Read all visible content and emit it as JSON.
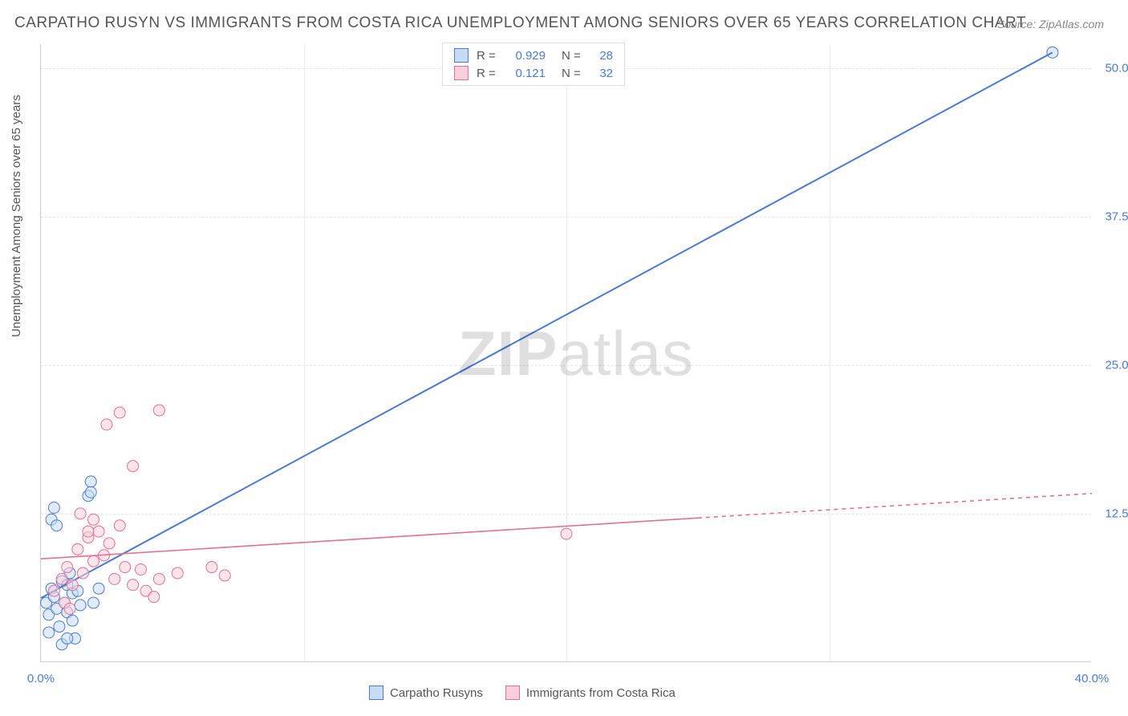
{
  "title": "CARPATHO RUSYN VS IMMIGRANTS FROM COSTA RICA UNEMPLOYMENT AMONG SENIORS OVER 65 YEARS CORRELATION CHART",
  "source": "Source: ZipAtlas.com",
  "y_axis_label": "Unemployment Among Seniors over 65 years",
  "watermark_bold": "ZIP",
  "watermark_rest": "atlas",
  "chart": {
    "type": "scatter-correlation",
    "xlim": [
      0,
      40
    ],
    "ylim": [
      0,
      52
    ],
    "x_ticks": [
      {
        "v": 0,
        "l": "0.0%"
      },
      {
        "v": 40,
        "l": "40.0%"
      }
    ],
    "y_ticks": [
      {
        "v": 12.5,
        "l": "12.5%"
      },
      {
        "v": 25,
        "l": "25.0%"
      },
      {
        "v": 37.5,
        "l": "37.5%"
      },
      {
        "v": 50,
        "l": "50.0%"
      }
    ],
    "x_minor_gridlines": [
      10,
      20,
      30
    ],
    "background_color": "#ffffff",
    "grid_color": "#e5e5e5",
    "axis_color": "#cccccc",
    "tick_label_color": "#4a7bd0",
    "series": [
      {
        "name": "Carpatho Rusyns",
        "color_fill": "#c7dbf5",
        "color_stroke": "#4a7bd0",
        "marker_radius": 7,
        "marker_opacity": 0.55,
        "R": "0.929",
        "N": "28",
        "trend": {
          "x1": 0,
          "y1": 5.4,
          "x2": 38.5,
          "y2": 51.3,
          "solid_until_x": 38.5,
          "line_width": 2
        },
        "points": [
          [
            0.2,
            5.0
          ],
          [
            0.3,
            4.0
          ],
          [
            0.4,
            6.2
          ],
          [
            0.5,
            5.5
          ],
          [
            0.6,
            4.5
          ],
          [
            0.7,
            3.0
          ],
          [
            0.8,
            6.8
          ],
          [
            0.9,
            5.0
          ],
          [
            1.0,
            6.5
          ],
          [
            1.0,
            4.2
          ],
          [
            1.1,
            7.5
          ],
          [
            1.2,
            3.5
          ],
          [
            1.2,
            5.8
          ],
          [
            1.3,
            2.0
          ],
          [
            1.4,
            6.0
          ],
          [
            1.5,
            4.8
          ],
          [
            0.4,
            12.0
          ],
          [
            0.5,
            13.0
          ],
          [
            0.6,
            11.5
          ],
          [
            1.8,
            14.0
          ],
          [
            1.9,
            15.2
          ],
          [
            1.9,
            14.3
          ],
          [
            2.0,
            5.0
          ],
          [
            2.2,
            6.2
          ],
          [
            0.3,
            2.5
          ],
          [
            0.8,
            1.5
          ],
          [
            1.0,
            2.0
          ],
          [
            38.5,
            51.3
          ]
        ]
      },
      {
        "name": "Immigrants from Costa Rica",
        "color_fill": "#f7d0db",
        "color_stroke": "#e36f91",
        "marker_radius": 7,
        "marker_opacity": 0.55,
        "R": "0.121",
        "N": "32",
        "trend": {
          "x1": 0,
          "y1": 8.7,
          "x2": 40,
          "y2": 14.2,
          "solid_until_x": 25,
          "line_width": 1.6
        },
        "points": [
          [
            0.5,
            6.0
          ],
          [
            0.8,
            7.0
          ],
          [
            1.0,
            8.0
          ],
          [
            1.2,
            6.5
          ],
          [
            1.4,
            9.5
          ],
          [
            1.6,
            7.5
          ],
          [
            1.8,
            10.5
          ],
          [
            2.0,
            8.5
          ],
          [
            2.2,
            11.0
          ],
          [
            2.4,
            9.0
          ],
          [
            2.6,
            10.0
          ],
          [
            2.8,
            7.0
          ],
          [
            3.0,
            11.5
          ],
          [
            3.2,
            8.0
          ],
          [
            3.5,
            6.5
          ],
          [
            3.8,
            7.8
          ],
          [
            4.0,
            6.0
          ],
          [
            4.3,
            5.5
          ],
          [
            4.5,
            7.0
          ],
          [
            5.2,
            7.5
          ],
          [
            6.5,
            8.0
          ],
          [
            7.0,
            7.3
          ],
          [
            3.0,
            21.0
          ],
          [
            4.5,
            21.2
          ],
          [
            2.5,
            20.0
          ],
          [
            3.5,
            16.5
          ],
          [
            1.5,
            12.5
          ],
          [
            1.8,
            11.0
          ],
          [
            2.0,
            12.0
          ],
          [
            0.9,
            5.0
          ],
          [
            1.1,
            4.5
          ],
          [
            20.0,
            10.8
          ]
        ]
      }
    ]
  },
  "legend_top": {
    "r_label": "R =",
    "n_label": "N ="
  },
  "legend_bottom": {
    "items": [
      "Carpatho Rusyns",
      "Immigrants from Costa Rica"
    ]
  }
}
